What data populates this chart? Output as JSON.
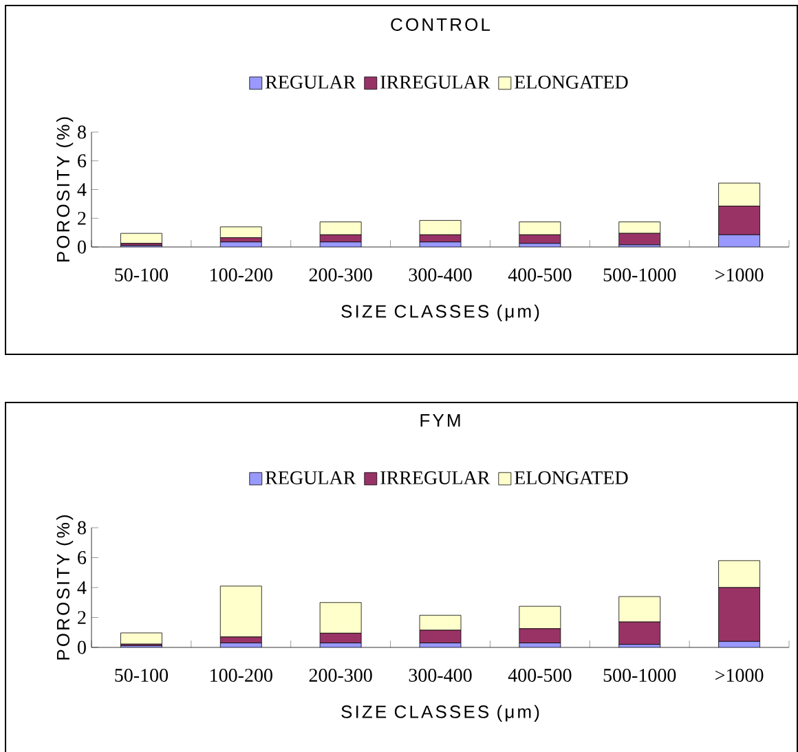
{
  "chart_data": [
    {
      "type": "bar",
      "stacked": true,
      "title": "CONTROL",
      "xlabel": "SIZE CLASSES (μm)",
      "ylabel": "POROSITY (%)",
      "legend": "top",
      "categories": [
        "50-100",
        "100-200",
        "200-300",
        "300-400",
        "400-500",
        "500-1000",
        ">1000"
      ],
      "ylim": [
        0,
        8
      ],
      "yticks": [
        0,
        2,
        4,
        6,
        8
      ],
      "series": [
        {
          "name": "REGULAR",
          "color": "#9999ff",
          "values": [
            0.1,
            0.35,
            0.35,
            0.35,
            0.25,
            0.15,
            0.85
          ]
        },
        {
          "name": "IRREGULAR",
          "color": "#993366",
          "values": [
            0.15,
            0.3,
            0.5,
            0.5,
            0.6,
            0.8,
            2.0
          ]
        },
        {
          "name": "ELONGATED",
          "color": "#ffffcc",
          "values": [
            0.7,
            0.75,
            0.9,
            1.0,
            0.9,
            0.8,
            1.6
          ]
        }
      ]
    },
    {
      "type": "bar",
      "stacked": true,
      "title": "FYM",
      "xlabel": "SIZE CLASSES (μm)",
      "ylabel": "POROSITY (%)",
      "legend": "top",
      "categories": [
        "50-100",
        "100-200",
        "200-300",
        "300-400",
        "400-500",
        "500-1000",
        ">1000"
      ],
      "ylim": [
        0,
        8
      ],
      "yticks": [
        0,
        2,
        4,
        6,
        8
      ],
      "series": [
        {
          "name": "REGULAR",
          "color": "#9999ff",
          "values": [
            0.12,
            0.3,
            0.3,
            0.3,
            0.3,
            0.2,
            0.4
          ]
        },
        {
          "name": "IRREGULAR",
          "color": "#993366",
          "values": [
            0.1,
            0.4,
            0.65,
            0.85,
            0.95,
            1.5,
            3.6
          ]
        },
        {
          "name": "ELONGATED",
          "color": "#ffffcc",
          "values": [
            0.75,
            3.4,
            2.05,
            1.0,
            1.5,
            1.7,
            1.8
          ]
        }
      ]
    }
  ]
}
